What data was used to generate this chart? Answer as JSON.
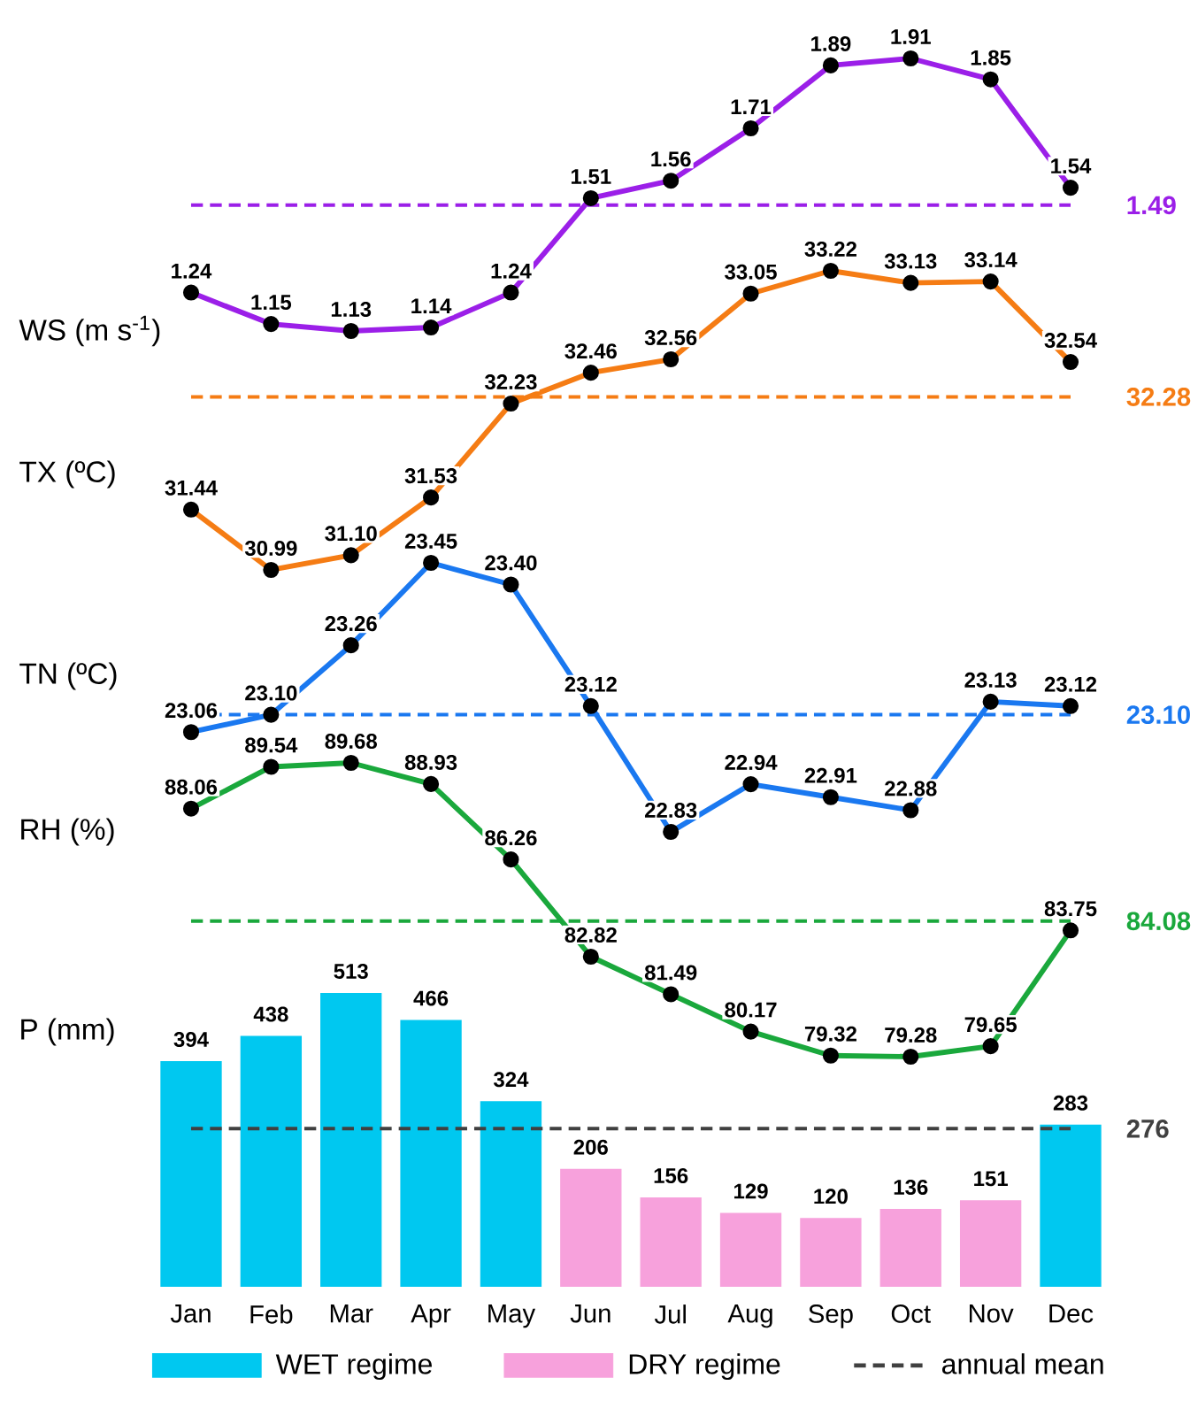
{
  "chart_data": [
    {
      "type": "line",
      "ylabel": "WS (m s$^{-1}$)",
      "categories": [
        null,
        null,
        null,
        null,
        null,
        null,
        null,
        null,
        null,
        null,
        null,
        null
      ],
      "marker": "circle",
      "series": [
        {
          "color": "#9b1fe8",
          "values": [
            1.24,
            1.15,
            1.13,
            1.14,
            1.24,
            1.51,
            1.56,
            1.71,
            1.89,
            1.91,
            1.85,
            1.54
          ],
          "value_labels": [
            "1.24",
            "1.15",
            "1.13",
            "1.14",
            "1.24",
            "1.51",
            "1.56",
            "1.71",
            "1.89",
            "1.91",
            "1.85",
            "1.54"
          ]
        }
      ],
      "ref_lines": [
        {
          "axis": "y",
          "value": 1.49,
          "label": "1.49",
          "color": "#9b1fe8",
          "line_style": "dashed"
        }
      ]
    },
    {
      "type": "line",
      "ylabel": "TX (ºC)",
      "categories": [
        null,
        null,
        null,
        null,
        null,
        null,
        null,
        null,
        null,
        null,
        null,
        null
      ],
      "marker": "circle",
      "series": [
        {
          "color": "#f57c14",
          "values": [
            31.44,
            30.99,
            31.1,
            31.53,
            32.23,
            32.46,
            32.56,
            33.05,
            33.22,
            33.13,
            33.14,
            32.54
          ],
          "value_labels": [
            "31.44",
            "30.99",
            "31.10",
            "31.53",
            "32.23",
            "32.46",
            "32.56",
            "33.05",
            "33.22",
            "33.13",
            "33.14",
            "32.54"
          ]
        }
      ],
      "ref_lines": [
        {
          "axis": "y",
          "value": 32.28,
          "label": "32.28",
          "color": "#f57c14",
          "line_style": "dashed"
        }
      ]
    },
    {
      "type": "line",
      "ylabel": "TN (ºC)",
      "categories": [
        null,
        null,
        null,
        null,
        null,
        null,
        null,
        null,
        null,
        null,
        null,
        null
      ],
      "marker": "circle",
      "series": [
        {
          "color": "#1a78f0",
          "values": [
            23.06,
            23.1,
            23.26,
            23.45,
            23.4,
            23.12,
            22.83,
            22.94,
            22.91,
            22.88,
            23.13,
            23.12
          ],
          "value_labels": [
            "23.06",
            "23.10",
            "23.26",
            "23.45",
            "23.40",
            "23.12",
            "22.83",
            "22.94",
            "22.91",
            "22.88",
            "23.13",
            "23.12"
          ]
        }
      ],
      "ref_lines": [
        {
          "axis": "y",
          "value": 23.1,
          "label": "23.10",
          "color": "#1a78f0",
          "line_style": "dashed"
        }
      ]
    },
    {
      "type": "line",
      "ylabel": "RH (%)",
      "categories": [
        null,
        null,
        null,
        null,
        null,
        null,
        null,
        null,
        null,
        null,
        null,
        null
      ],
      "marker": "circle",
      "series": [
        {
          "color": "#1aa83c",
          "values": [
            88.06,
            89.54,
            89.68,
            88.93,
            86.26,
            82.82,
            81.49,
            80.17,
            79.32,
            79.28,
            79.65,
            83.75
          ],
          "value_labels": [
            "88.06",
            "89.54",
            "89.68",
            "88.93",
            "86.26",
            "82.82",
            "81.49",
            "80.17",
            "79.32",
            "79.28",
            "79.65",
            "83.75"
          ]
        }
      ],
      "ref_lines": [
        {
          "axis": "y",
          "value": 84.08,
          "label": "84.08",
          "color": "#1aa83c",
          "line_style": "dashed"
        }
      ]
    },
    {
      "type": "bar",
      "ylabel": "P (mm)",
      "categories": [
        "Jan",
        "Feb",
        "Mar",
        "Apr",
        "May",
        "Jun",
        "Jul",
        "Aug",
        "Sep",
        "Oct",
        "Nov",
        "Dec"
      ],
      "legend": "bottom",
      "series": [
        {
          "name": "WET regime",
          "color": "#00c8f0",
          "values": [
            394,
            438,
            513,
            466,
            324,
            null,
            null,
            null,
            null,
            null,
            null,
            283
          ],
          "value_labels": [
            "394",
            "438",
            "513",
            "466",
            "324",
            null,
            null,
            null,
            null,
            null,
            null,
            "283"
          ]
        },
        {
          "name": "DRY regime",
          "color": "#f7a1dc",
          "values": [
            null,
            null,
            null,
            null,
            null,
            206,
            156,
            129,
            120,
            136,
            151,
            null
          ],
          "value_labels": [
            null,
            null,
            null,
            null,
            null,
            "206",
            "156",
            "129",
            "120",
            "136",
            "151",
            null
          ]
        }
      ],
      "ref_lines": [
        {
          "axis": "y",
          "value": 276,
          "label": "276",
          "color": "#404040",
          "line_style": "dashed"
        }
      ],
      "annotations": [
        "annual mean"
      ]
    }
  ]
}
